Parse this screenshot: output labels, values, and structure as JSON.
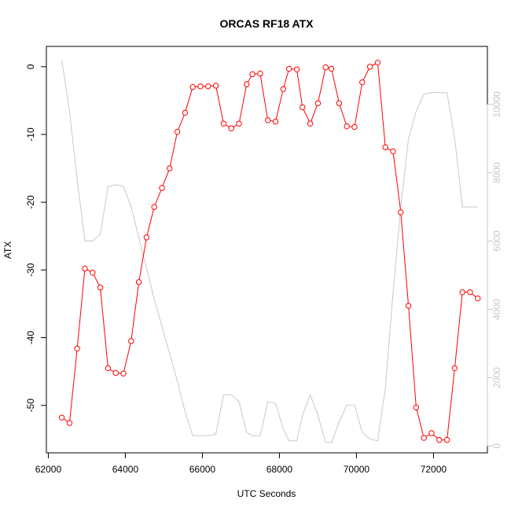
{
  "chart_data": {
    "type": "line",
    "title": "ORCAS RF18 ATX",
    "xlabel": "UTC Seconds",
    "ylabel": "ATX",
    "xlim": [
      61950,
      73400
    ],
    "ylim": [
      -57,
      3
    ],
    "y2lim": [
      -200,
      11700
    ],
    "x_ticks": [
      62000,
      64000,
      66000,
      68000,
      70000,
      72000
    ],
    "y_ticks": [
      0,
      -10,
      -20,
      -30,
      -40,
      -50
    ],
    "y2_ticks": [
      0,
      2000,
      4000,
      6000,
      8000,
      10000
    ],
    "grid": false,
    "series": [
      {
        "axis": "left",
        "color": "#ff0000",
        "marker": "open-circle",
        "x": [
          62350,
          62550,
          62750,
          62950,
          63150,
          63350,
          63550,
          63750,
          63950,
          64150,
          64350,
          64550,
          64750,
          64950,
          65150,
          65350,
          65550,
          65750,
          65950,
          66150,
          66350,
          66550,
          66750,
          66950,
          67150,
          67300,
          67500,
          67700,
          67900,
          68100,
          68250,
          68450,
          68600,
          68800,
          69000,
          69200,
          69350,
          69550,
          69750,
          69950,
          70150,
          70350,
          70550,
          70750,
          70950,
          71150,
          71350,
          71550,
          71750,
          71950,
          72150,
          72350,
          72550,
          72750,
          72950,
          73150
        ],
        "y": [
          -51.8,
          -52.6,
          -41.6,
          -29.8,
          -30.4,
          -32.6,
          -44.5,
          -45.2,
          -45.3,
          -40.5,
          -31.8,
          -25.2,
          -20.7,
          -17.9,
          -15.0,
          -9.6,
          -6.8,
          -3.0,
          -2.9,
          -2.9,
          -2.8,
          -8.4,
          -9.1,
          -8.4,
          -2.6,
          -1.1,
          -1.0,
          -7.9,
          -8.1,
          -3.3,
          -0.3,
          -0.4,
          -6.0,
          -8.4,
          -5.4,
          -0.1,
          -0.3,
          -5.4,
          -8.8,
          -8.9,
          -2.3,
          0.0,
          0.6,
          -11.9,
          -12.5,
          -21.5,
          -35.3,
          -50.3,
          -54.8,
          -54.1,
          -55.1,
          -55.1,
          -44.5,
          -33.3,
          -33.3,
          -34.2
        ]
      },
      {
        "axis": "right",
        "color": "#c8c8c8",
        "marker": "none",
        "x": [
          62350,
          62550,
          62750,
          62950,
          63150,
          63350,
          63550,
          63750,
          63950,
          64150,
          64350,
          64550,
          64750,
          64950,
          65150,
          65350,
          65550,
          65750,
          65950,
          66150,
          66350,
          66550,
          66750,
          66950,
          67150,
          67300,
          67500,
          67700,
          67900,
          68100,
          68250,
          68450,
          68600,
          68800,
          69000,
          69200,
          69350,
          69550,
          69750,
          69950,
          70150,
          70350,
          70550,
          70750,
          70950,
          71150,
          71350,
          71550,
          71750,
          71950,
          72150,
          72350,
          72550,
          72750,
          72950,
          73150
        ],
        "y": [
          11300,
          9800,
          7800,
          6000,
          6000,
          6200,
          7600,
          7650,
          7600,
          7000,
          6100,
          5200,
          4300,
          3500,
          2700,
          1900,
          1000,
          300,
          300,
          300,
          350,
          1500,
          1500,
          1300,
          400,
          300,
          300,
          1300,
          1250,
          500,
          150,
          150,
          900,
          1500,
          900,
          100,
          100,
          700,
          1200,
          1200,
          400,
          200,
          150,
          1700,
          4500,
          7000,
          9000,
          9800,
          10300,
          10350,
          10350,
          10350,
          9000,
          7000,
          7000,
          7000
        ]
      }
    ]
  }
}
